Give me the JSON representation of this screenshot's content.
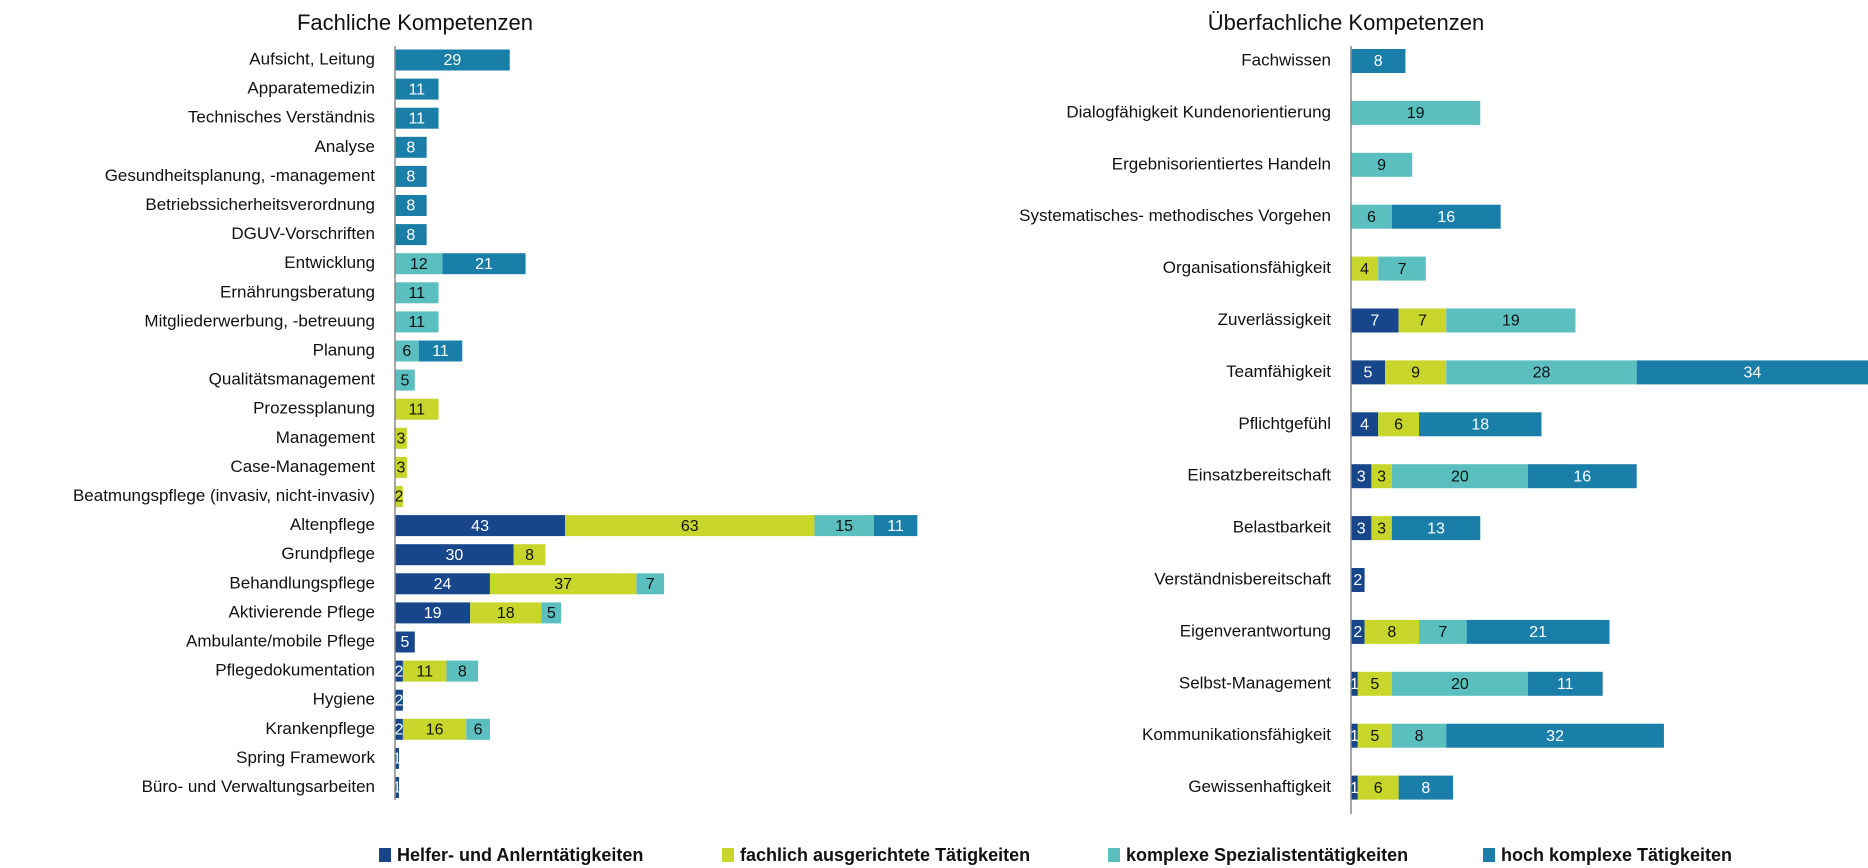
{
  "chart_data": [
    {
      "type": "bar",
      "orientation": "horizontal",
      "stacked": true,
      "title": "Fachliche Kompetenzen",
      "categories": [
        "Aufsicht, Leitung",
        "Apparatemedizin",
        "Technisches Verständnis",
        "Analyse",
        "Gesundheitsplanung, -management",
        "Betriebssicherheitsverordnung",
        "DGUV-Vorschriften",
        "Entwicklung",
        "Ernährungsberatung",
        "Mitgliederwerbung, -betreuung",
        "Planung",
        "Qualitätsmanagement",
        "Prozessplanung",
        "Management",
        "Case-Management",
        "Beatmungspflege (invasiv, nicht-invasiv)",
        "Altenpflege",
        "Grundpflege",
        "Behandlungspflege",
        "Aktivierende Pflege",
        "Ambulante/mobile Pflege",
        "Pflegedokumentation",
        "Hygiene",
        "Krankenpflege",
        "Spring Framework",
        "Büro- und Verwaltungsarbeiten"
      ],
      "series": [
        {
          "values": [
            null,
            null,
            null,
            null,
            null,
            null,
            null,
            null,
            null,
            null,
            null,
            null,
            null,
            null,
            null,
            null,
            43,
            30,
            24,
            19,
            5,
            2,
            2,
            2,
            1,
            1
          ]
        },
        {
          "values": [
            null,
            null,
            null,
            null,
            null,
            null,
            null,
            null,
            null,
            null,
            null,
            null,
            11,
            3,
            3,
            2,
            63,
            8,
            37,
            18,
            null,
            11,
            null,
            16,
            null,
            null
          ]
        },
        {
          "values": [
            null,
            null,
            null,
            null,
            null,
            null,
            null,
            12,
            11,
            11,
            6,
            5,
            null,
            null,
            null,
            null,
            15,
            null,
            7,
            5,
            null,
            8,
            null,
            6,
            null,
            null
          ]
        },
        {
          "values": [
            29,
            11,
            11,
            8,
            8,
            8,
            8,
            21,
            null,
            null,
            11,
            null,
            null,
            null,
            null,
            null,
            11,
            null,
            null,
            null,
            null,
            null,
            null,
            null,
            null,
            null
          ]
        }
      ],
      "xlim": [
        0,
        140
      ]
    },
    {
      "type": "bar",
      "orientation": "horizontal",
      "stacked": true,
      "title": "Überfachliche Kompetenzen",
      "categories": [
        "Fachwissen",
        "Dialogfähigkeit Kundenorientierung",
        "Ergebnisorientiertes Handeln",
        "Systematisches- methodisches Vorgehen",
        "Organisationsfähigkeit",
        "Zuverlässigkeit",
        "Teamfähigkeit",
        "Pflichtgefühl",
        "Einsatzbereitschaft",
        "Belastbarkeit",
        "Verständnisbereitschaft",
        "Eigenverantwortung",
        "Selbst-Management",
        "Kommunikationsfähigkeit",
        "Gewissenhaftigkeit"
      ],
      "series": [
        {
          "values": [
            null,
            null,
            null,
            null,
            null,
            7,
            5,
            4,
            3,
            3,
            2,
            2,
            1,
            1,
            1
          ]
        },
        {
          "values": [
            null,
            null,
            null,
            null,
            4,
            7,
            9,
            6,
            3,
            3,
            null,
            8,
            5,
            5,
            6
          ]
        },
        {
          "values": [
            null,
            19,
            9,
            6,
            7,
            19,
            28,
            null,
            20,
            null,
            null,
            7,
            20,
            8,
            null
          ]
        },
        {
          "values": [
            8,
            null,
            null,
            16,
            null,
            null,
            34,
            18,
            16,
            13,
            null,
            21,
            11,
            32,
            8
          ]
        }
      ],
      "xlim": [
        0,
        76
      ]
    }
  ],
  "legend": [
    {
      "name": "Helfer- und Anlerntätigkeiten",
      "color": "#17478a"
    },
    {
      "name": "fachlich ausgerichtete Tätigkeiten",
      "color": "#c8d62b"
    },
    {
      "name": "komplexe Spezialistentätigkeiten",
      "color": "#5bbfc0"
    },
    {
      "name": "hoch komplexe Tätigkeiten",
      "color": "#1a7fa8"
    }
  ]
}
